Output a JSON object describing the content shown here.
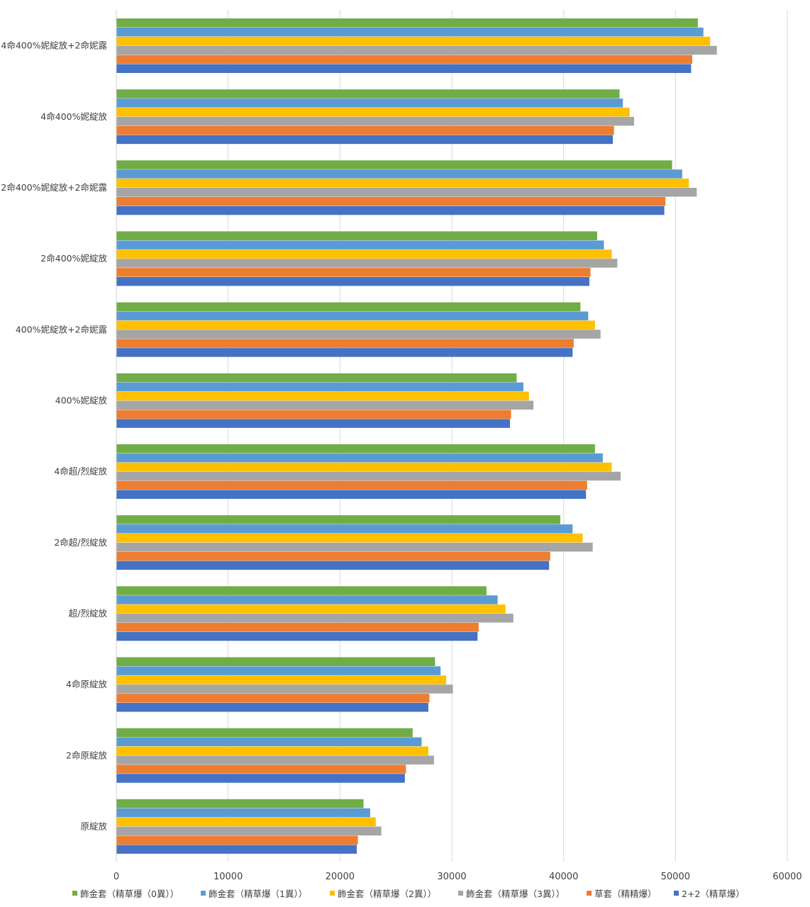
{
  "chart_data": {
    "type": "bar",
    "orientation": "horizontal",
    "categories": [
      "4命400%妮綻放+2命妮露",
      "4命400%妮綻放",
      "2命400%妮綻放+2命妮露",
      "2命400%妮綻放",
      "400%妮綻放+2命妮露",
      "400%妮綻放",
      "4命超/烈綻放",
      "2命超/烈綻放",
      "超/烈綻放",
      "4命原綻放",
      "2命原綻放",
      "原綻放"
    ],
    "series": [
      {
        "name": "飾金套（精草爆（0異））",
        "color": "#70ad47",
        "values": [
          52000,
          45000,
          49700,
          43000,
          41500,
          35800,
          42800,
          39700,
          33100,
          28500,
          26500,
          22100
        ]
      },
      {
        "name": "飾金套（精草爆（1異））",
        "color": "#5b9bd5",
        "values": [
          52500,
          45300,
          50600,
          43600,
          42200,
          36400,
          43500,
          40800,
          34100,
          29000,
          27300,
          22700
        ]
      },
      {
        "name": "飾金套（精草爆（2異））",
        "color": "#ffc000",
        "values": [
          53100,
          45900,
          51200,
          44300,
          42800,
          36900,
          44300,
          41700,
          34800,
          29500,
          27900,
          23200
        ]
      },
      {
        "name": "飾金套（精草爆（3異））",
        "color": "#a5a5a5",
        "values": [
          53700,
          46300,
          51900,
          44800,
          43300,
          37300,
          45100,
          42600,
          35500,
          30100,
          28400,
          23700
        ]
      },
      {
        "name": "草套（精精爆）",
        "color": "#ed7d31",
        "values": [
          51500,
          44500,
          49100,
          42400,
          40900,
          35300,
          42100,
          38800,
          32400,
          28000,
          25900,
          21600
        ]
      },
      {
        "name": "2+2（精草爆）",
        "color": "#4472c4",
        "values": [
          51400,
          44400,
          49000,
          42300,
          40800,
          35200,
          42000,
          38700,
          32300,
          27900,
          25800,
          21500
        ]
      }
    ],
    "x_ticks": [
      0,
      10000,
      20000,
      30000,
      40000,
      50000,
      60000
    ],
    "xlim": [
      0,
      60000
    ],
    "grid": "vertical",
    "legend": "bottom",
    "title": "",
    "xlabel": "",
    "ylabel": ""
  }
}
